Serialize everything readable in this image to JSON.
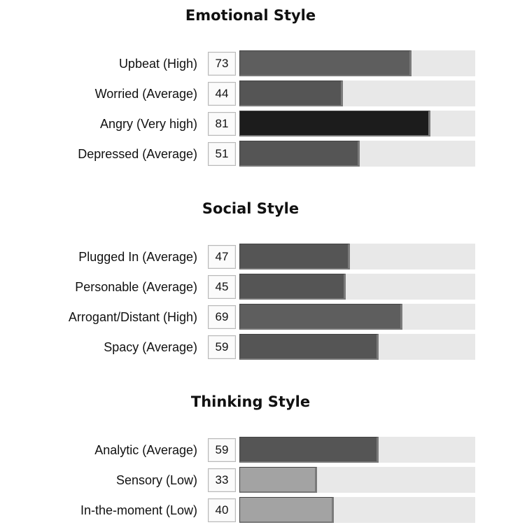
{
  "chart_data": [
    {
      "type": "bar",
      "orientation": "horizontal",
      "title": "Emotional Style",
      "categories": [
        "Upbeat (High)",
        "Worried (Average)",
        "Angry (Very high)",
        "Depressed (Average)"
      ],
      "values": [
        73,
        44,
        81,
        51
      ],
      "colors": [
        "#5e5e5e",
        "#555555",
        "#1c1c1c",
        "#555555"
      ],
      "xlim": [
        0,
        100
      ]
    },
    {
      "type": "bar",
      "orientation": "horizontal",
      "title": "Social Style",
      "categories": [
        "Plugged In (Average)",
        "Personable (Average)",
        "Arrogant/Distant (High)",
        "Spacy (Average)"
      ],
      "values": [
        47,
        45,
        69,
        59
      ],
      "colors": [
        "#555555",
        "#555555",
        "#5e5e5e",
        "#555555"
      ],
      "xlim": [
        0,
        100
      ]
    },
    {
      "type": "bar",
      "orientation": "horizontal",
      "title": "Thinking Style",
      "categories": [
        "Analytic (Average)",
        "Sensory (Low)",
        "In-the-moment (Low)"
      ],
      "values": [
        59,
        33,
        40
      ],
      "colors": [
        "#555555",
        "#a3a3a3",
        "#a3a3a3"
      ],
      "xlim": [
        0,
        100
      ]
    }
  ]
}
